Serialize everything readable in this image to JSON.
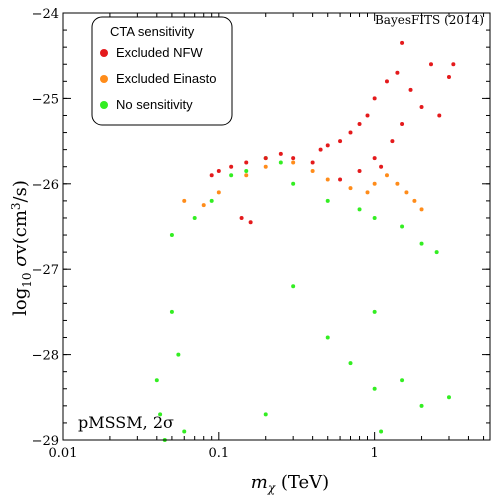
{
  "chart_data": {
    "type": "scatter",
    "title": "",
    "credit": "BayesFITS (2014)",
    "corner_label": "pMSSM, 2σ",
    "xlabel": "m_χ (TeV)",
    "ylabel": "log₁₀ σv(cm³/s)",
    "xscale": "log",
    "xlim": [
      0.01,
      5.5
    ],
    "ylim": [
      -29,
      -24
    ],
    "x_ticks": [
      0.01,
      0.1,
      1
    ],
    "x_tick_labels": [
      "0.01",
      "0.1",
      "1"
    ],
    "y_ticks": [
      -29,
      -28,
      -27,
      -26,
      -25,
      -24
    ],
    "y_tick_labels": [
      "−29",
      "−28",
      "−27",
      "−26",
      "−25",
      "−24"
    ],
    "grid": false,
    "legend": {
      "title": "CTA sensitivity",
      "placement": "top-left",
      "entries": [
        "Excluded NFW",
        "Excluded Einasto",
        "No sensitivity"
      ]
    },
    "series": [
      {
        "name": "Excluded NFW",
        "color": "#e41a1c",
        "points": [
          [
            0.09,
            -25.9
          ],
          [
            0.1,
            -25.85
          ],
          [
            0.12,
            -25.8
          ],
          [
            0.15,
            -25.75
          ],
          [
            0.2,
            -25.7
          ],
          [
            0.25,
            -25.65
          ],
          [
            0.3,
            -25.7
          ],
          [
            0.4,
            -25.75
          ],
          [
            0.5,
            -25.55
          ],
          [
            0.6,
            -25.5
          ],
          [
            0.7,
            -25.4
          ],
          [
            0.8,
            -25.3
          ],
          [
            0.9,
            -25.2
          ],
          [
            1.0,
            -25.0
          ],
          [
            1.1,
            -25.8
          ],
          [
            1.2,
            -24.8
          ],
          [
            1.3,
            -25.5
          ],
          [
            1.4,
            -24.7
          ],
          [
            1.5,
            -25.3
          ],
          [
            1.7,
            -24.9
          ],
          [
            2.0,
            -25.1
          ],
          [
            2.3,
            -24.6
          ],
          [
            2.6,
            -25.2
          ],
          [
            3.0,
            -24.75
          ],
          [
            3.2,
            -24.6
          ],
          [
            0.6,
            -25.95
          ],
          [
            0.8,
            -25.85
          ],
          [
            1.0,
            -25.7
          ],
          [
            0.45,
            -25.6
          ],
          [
            0.14,
            -26.4
          ],
          [
            0.16,
            -26.45
          ],
          [
            1.5,
            -24.35
          ]
        ]
      },
      {
        "name": "Excluded Einasto",
        "color": "#ff8c1a",
        "points": [
          [
            0.06,
            -26.2
          ],
          [
            0.08,
            -26.25
          ],
          [
            0.1,
            -26.1
          ],
          [
            0.15,
            -25.9
          ],
          [
            0.2,
            -25.8
          ],
          [
            0.3,
            -25.75
          ],
          [
            0.4,
            -25.85
          ],
          [
            0.5,
            -25.95
          ],
          [
            0.7,
            -26.05
          ],
          [
            0.9,
            -26.1
          ],
          [
            1.0,
            -26.0
          ],
          [
            1.2,
            -25.9
          ],
          [
            1.4,
            -26.0
          ],
          [
            1.6,
            -26.1
          ],
          [
            1.8,
            -26.2
          ],
          [
            2.0,
            -26.3
          ]
        ]
      },
      {
        "name": "No sensitivity",
        "color": "#33ee22",
        "points": [
          [
            0.04,
            -28.3
          ],
          [
            0.042,
            -28.7
          ],
          [
            0.045,
            -29.0
          ],
          [
            0.05,
            -27.5
          ],
          [
            0.055,
            -28.0
          ],
          [
            0.06,
            -28.9
          ],
          [
            0.05,
            -26.6
          ],
          [
            0.07,
            -26.4
          ],
          [
            0.09,
            -26.2
          ],
          [
            0.12,
            -25.9
          ],
          [
            0.15,
            -25.85
          ],
          [
            0.2,
            -25.7
          ],
          [
            0.25,
            -25.75
          ],
          [
            0.3,
            -26.0
          ],
          [
            0.5,
            -26.2
          ],
          [
            0.8,
            -26.3
          ],
          [
            1.0,
            -26.4
          ],
          [
            1.0,
            -27.5
          ],
          [
            1.0,
            -28.4
          ],
          [
            1.1,
            -28.9
          ],
          [
            1.5,
            -26.5
          ],
          [
            2.0,
            -26.7
          ],
          [
            2.5,
            -26.8
          ],
          [
            1.5,
            -28.3
          ],
          [
            2.0,
            -28.6
          ],
          [
            3.0,
            -28.5
          ],
          [
            0.3,
            -27.2
          ],
          [
            0.5,
            -27.8
          ],
          [
            0.7,
            -28.1
          ],
          [
            0.2,
            -28.7
          ]
        ]
      }
    ]
  }
}
